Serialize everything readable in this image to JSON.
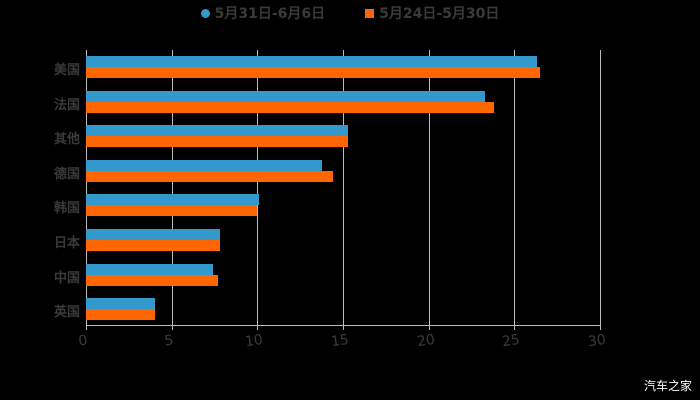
{
  "chart_data": {
    "type": "bar",
    "orientation": "horizontal",
    "title": "",
    "xlabel": "",
    "ylabel": "",
    "categories": [
      "美国",
      "法国",
      "其他",
      "德国",
      "韩国",
      "日本",
      "中国",
      "英国"
    ],
    "series": [
      {
        "name": "5月31日-6月6日",
        "color": "#3399cc",
        "values": [
          26.3,
          23.3,
          15.3,
          13.8,
          10.1,
          7.8,
          7.4,
          4.0
        ]
      },
      {
        "name": "5月24日-5月30日",
        "color": "#ff6600",
        "values": [
          26.5,
          23.8,
          15.3,
          14.4,
          10.0,
          7.8,
          7.7,
          4.0
        ]
      }
    ],
    "xlim": [
      0,
      30
    ],
    "xticks": [
      "0",
      "5",
      "10",
      "15",
      "20",
      "25",
      "30"
    ],
    "grid": true,
    "legend_position": "top"
  },
  "legend": [
    {
      "label": "5月31日-6月6日",
      "color": "#3399cc",
      "marker": "circle"
    },
    {
      "label": "5月24日-5月30日",
      "color": "#ff6600",
      "marker": "square"
    }
  ],
  "watermark": "汽车之家"
}
